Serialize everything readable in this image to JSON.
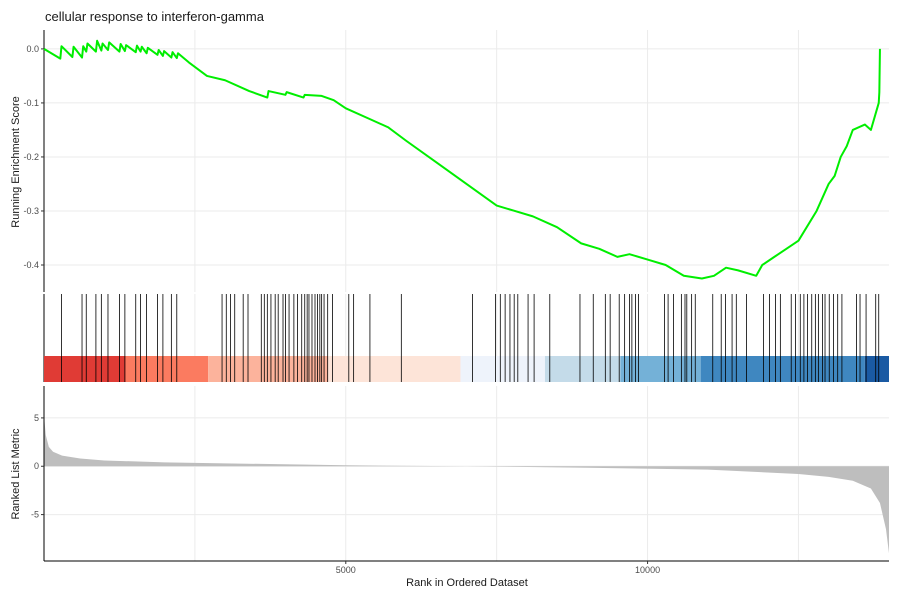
{
  "chart_data": [
    {
      "type": "line",
      "title": "cellular response to interferon-gamma",
      "ylabel": "Running Enrichment Score",
      "xlim": [
        0,
        14000
      ],
      "ylim": [
        -0.45,
        0.035
      ],
      "y_ticks": [
        0.0,
        -0.1,
        -0.2,
        -0.3,
        -0.4
      ],
      "y_tick_labels": [
        "0.0",
        "-0.1",
        "-0.2",
        "-0.3",
        "-0.4"
      ],
      "grid": true,
      "line_color": "#00ee00",
      "series": [
        {
          "x": [
            0,
            270,
            290,
            470,
            490,
            630,
            650,
            700,
            720,
            860,
            880,
            950,
            970,
            1060,
            1080,
            1250,
            1270,
            1340,
            1360,
            1520,
            1540,
            1600,
            1620,
            1700,
            1720,
            1880,
            1900,
            1970,
            1990,
            2110,
            2130,
            2200,
            2220,
            2400,
            2700,
            3000,
            3400,
            3700,
            3720,
            4000,
            4020,
            4300,
            4320,
            4600,
            4800,
            5000,
            5400,
            5700,
            6000,
            6500,
            7000,
            7500,
            7800,
            8100,
            8500,
            8900,
            9200,
            9500,
            9700,
            10000,
            10300,
            10600,
            10900,
            11100,
            11300,
            11500,
            11800,
            11900,
            12100,
            12300,
            12500,
            12800,
            13000,
            13100,
            13200,
            13300,
            13400,
            13600,
            13700,
            13830,
            13840,
            13850
          ],
          "y": [
            0.0,
            -0.018,
            0.005,
            -0.015,
            0.004,
            -0.016,
            0.005,
            -0.005,
            0.01,
            -0.005,
            0.015,
            -0.003,
            0.01,
            -0.002,
            0.012,
            -0.005,
            0.009,
            -0.004,
            0.007,
            -0.006,
            0.006,
            -0.005,
            0.004,
            -0.008,
            0.002,
            -0.011,
            -0.002,
            -0.013,
            -0.004,
            -0.016,
            -0.006,
            -0.017,
            -0.008,
            -0.025,
            -0.05,
            -0.058,
            -0.078,
            -0.09,
            -0.078,
            -0.085,
            -0.08,
            -0.09,
            -0.085,
            -0.087,
            -0.095,
            -0.11,
            -0.13,
            -0.145,
            -0.17,
            -0.21,
            -0.25,
            -0.29,
            -0.3,
            -0.31,
            -0.33,
            -0.36,
            -0.37,
            -0.385,
            -0.38,
            -0.39,
            -0.4,
            -0.42,
            -0.425,
            -0.42,
            -0.405,
            -0.41,
            -0.42,
            -0.4,
            -0.385,
            -0.37,
            -0.355,
            -0.3,
            -0.25,
            -0.235,
            -0.2,
            -0.18,
            -0.15,
            -0.14,
            -0.15,
            -0.1,
            -0.08,
            0.0
          ]
        }
      ]
    },
    {
      "type": "barcode",
      "hits": [
        290,
        630,
        700,
        860,
        950,
        1060,
        1250,
        1340,
        1520,
        1600,
        1700,
        1880,
        1970,
        2110,
        2200,
        2950,
        3020,
        3090,
        3160,
        3300,
        3380,
        3600,
        3650,
        3700,
        3760,
        3830,
        3880,
        3960,
        4000,
        4060,
        4140,
        4200,
        4270,
        4320,
        4360,
        4390,
        4440,
        4490,
        4530,
        4570,
        4600,
        4640,
        4700,
        4780,
        5050,
        5130,
        5400,
        5920,
        7100,
        7480,
        7560,
        7640,
        7720,
        7790,
        7850,
        8020,
        8120,
        8380,
        8880,
        9100,
        9300,
        9380,
        9530,
        9620,
        9700,
        9740,
        9800,
        9850,
        10280,
        10340,
        10430,
        10560,
        10620,
        10650,
        10730,
        10790,
        11080,
        11220,
        11290,
        11400,
        11470,
        11640,
        11920,
        12020,
        12120,
        12200,
        12380,
        12450,
        12530,
        12590,
        12650,
        12720,
        12780,
        12830,
        12900,
        12940,
        13010,
        13080,
        13150,
        13220,
        13460,
        13520,
        13620,
        13780,
        13830
      ],
      "color_bands": [
        {
          "from": 0,
          "to": 1350,
          "color": "#e03b35"
        },
        {
          "from": 1350,
          "to": 2720,
          "color": "#fb7b60"
        },
        {
          "from": 2720,
          "to": 4700,
          "color": "#fcb39c"
        },
        {
          "from": 4700,
          "to": 6900,
          "color": "#fde4d8"
        },
        {
          "from": 6900,
          "to": 8300,
          "color": "#eef3fb"
        },
        {
          "from": 8300,
          "to": 9550,
          "color": "#c4dbe9"
        },
        {
          "from": 9550,
          "to": 10880,
          "color": "#74b1d7"
        },
        {
          "from": 10880,
          "to": 13600,
          "color": "#3f87c0"
        },
        {
          "from": 13600,
          "to": 14000,
          "color": "#1a5aa3"
        }
      ]
    },
    {
      "type": "area",
      "ylabel": "Ranked List Metric",
      "xlabel": "Rank in Ordered Dataset",
      "xlim": [
        0,
        14000
      ],
      "ylim": [
        -9.8,
        8.3
      ],
      "x_ticks": [
        5000,
        10000
      ],
      "x_tick_labels": [
        "5000",
        "10000"
      ],
      "y_ticks": [
        5,
        0,
        -5
      ],
      "y_tick_labels": [
        "5",
        "0",
        "-5"
      ],
      "grid": true,
      "fill_color": "#bebebe",
      "x": [
        0,
        30,
        80,
        150,
        300,
        600,
        1000,
        2000,
        3000,
        5000,
        7000,
        9000,
        11000,
        12500,
        13000,
        13400,
        13700,
        13850,
        13950,
        14000
      ],
      "y": [
        5.2,
        3.2,
        2.0,
        1.5,
        1.1,
        0.8,
        0.6,
        0.4,
        0.3,
        0.1,
        0.0,
        -0.15,
        -0.35,
        -0.8,
        -1.1,
        -1.5,
        -2.3,
        -3.8,
        -6.5,
        -9.0
      ]
    }
  ]
}
